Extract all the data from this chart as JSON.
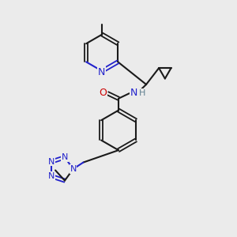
{
  "bg_color": "#ebebeb",
  "bond_color": "#1a1a1a",
  "nitrogen_color": "#2222cc",
  "oxygen_color": "#cc0000",
  "hydrogen_color": "#608090",
  "figsize": [
    3.0,
    3.0
  ],
  "dpi": 100,
  "xlim": [
    0,
    10
  ],
  "ylim": [
    0,
    10
  ]
}
